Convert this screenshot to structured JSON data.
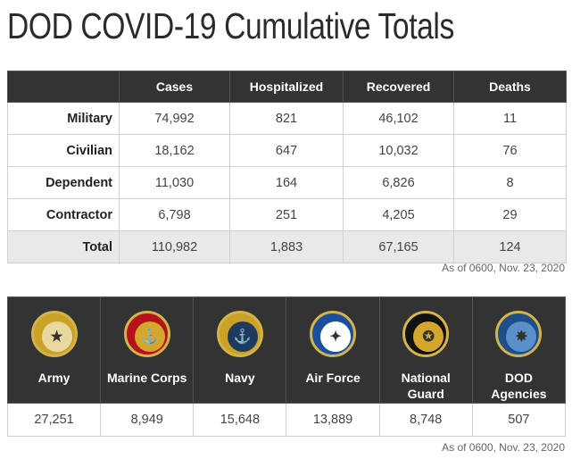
{
  "page": {
    "title": "DOD COVID-19 Cumulative Totals"
  },
  "totals_table": {
    "headers": [
      "",
      "Cases",
      "Hospitalized",
      "Recovered",
      "Deaths"
    ],
    "rows": [
      {
        "label": "Military",
        "cases": "74,992",
        "hospitalized": "821",
        "recovered": "46,102",
        "deaths": "11"
      },
      {
        "label": "Civilian",
        "cases": "18,162",
        "hospitalized": "647",
        "recovered": "10,032",
        "deaths": "76"
      },
      {
        "label": "Dependent",
        "cases": "11,030",
        "hospitalized": "164",
        "recovered": "6,826",
        "deaths": "8"
      },
      {
        "label": "Contractor",
        "cases": "6,798",
        "hospitalized": "251",
        "recovered": "4,205",
        "deaths": "29"
      },
      {
        "label": "Total",
        "cases": "110,982",
        "hospitalized": "1,883",
        "recovered": "67,165",
        "deaths": "124"
      }
    ],
    "as_of": "As of 0600, Nov. 23, 2020"
  },
  "branches_table": {
    "branches": [
      {
        "name": "Army",
        "value": "27,251",
        "icon": "army-seal-icon",
        "seal_color": "#c9a227",
        "inner_color": "#e8d9a0",
        "glyph": "★"
      },
      {
        "name": "Marine Corps",
        "value": "8,949",
        "icon": "marine-corps-seal-icon",
        "seal_color": "#b5121b",
        "inner_color": "#d4a72c",
        "glyph": "⚓"
      },
      {
        "name": "Navy",
        "value": "15,648",
        "icon": "navy-seal-icon",
        "seal_color": "#c9a227",
        "inner_color": "#1f3a5f",
        "glyph": "⚓"
      },
      {
        "name": "Air Force",
        "value": "13,889",
        "icon": "air-force-seal-icon",
        "seal_color": "#1d4e9e",
        "inner_color": "#ffffff",
        "glyph": "✦"
      },
      {
        "name": "National Guard",
        "value": "8,748",
        "icon": "national-guard-seal-icon",
        "seal_color": "#111111",
        "inner_color": "#d4a72c",
        "glyph": "✪"
      },
      {
        "name": "DOD Agencies",
        "value": "507",
        "icon": "dod-agencies-seal-icon",
        "seal_color": "#1f4f8a",
        "inner_color": "#5b8fc7",
        "glyph": "✸"
      }
    ],
    "as_of": "As of 0600, Nov. 23, 2020"
  }
}
